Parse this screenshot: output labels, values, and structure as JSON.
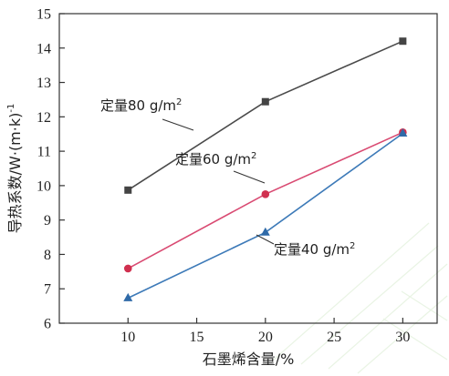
{
  "chart_data": {
    "type": "line",
    "xlabel": "石墨烯含量/%",
    "ylabel": "导热系数/W·(m·k)",
    "ylabel_sup": "-1",
    "x": [
      10,
      20,
      30
    ],
    "xlim": [
      5,
      32.5
    ],
    "ylim": [
      6,
      15
    ],
    "x_ticks": [
      "10",
      "15",
      "20",
      "25",
      "30"
    ],
    "y_ticks": [
      "6",
      "7",
      "8",
      "9",
      "10",
      "11",
      "12",
      "13",
      "14",
      "15"
    ],
    "grid": false,
    "series": [
      {
        "label_parts": [
          "定量80 g/m",
          "2"
        ],
        "values": [
          9.87,
          12.44,
          14.2
        ],
        "marker": "square",
        "color": "#4a4a4a",
        "marker_color": "#444444"
      },
      {
        "label_parts": [
          "定量60 g/m",
          "2"
        ],
        "values": [
          7.59,
          9.75,
          11.55
        ],
        "marker": "circle",
        "color": "#d94a72",
        "marker_color": "#d0304f"
      },
      {
        "label_parts": [
          "定量40 g/m",
          "2"
        ],
        "values": [
          6.73,
          8.64,
          11.52
        ],
        "marker": "triangle",
        "color": "#3d7ab8",
        "marker_color": "#2f6aa8"
      }
    ]
  }
}
